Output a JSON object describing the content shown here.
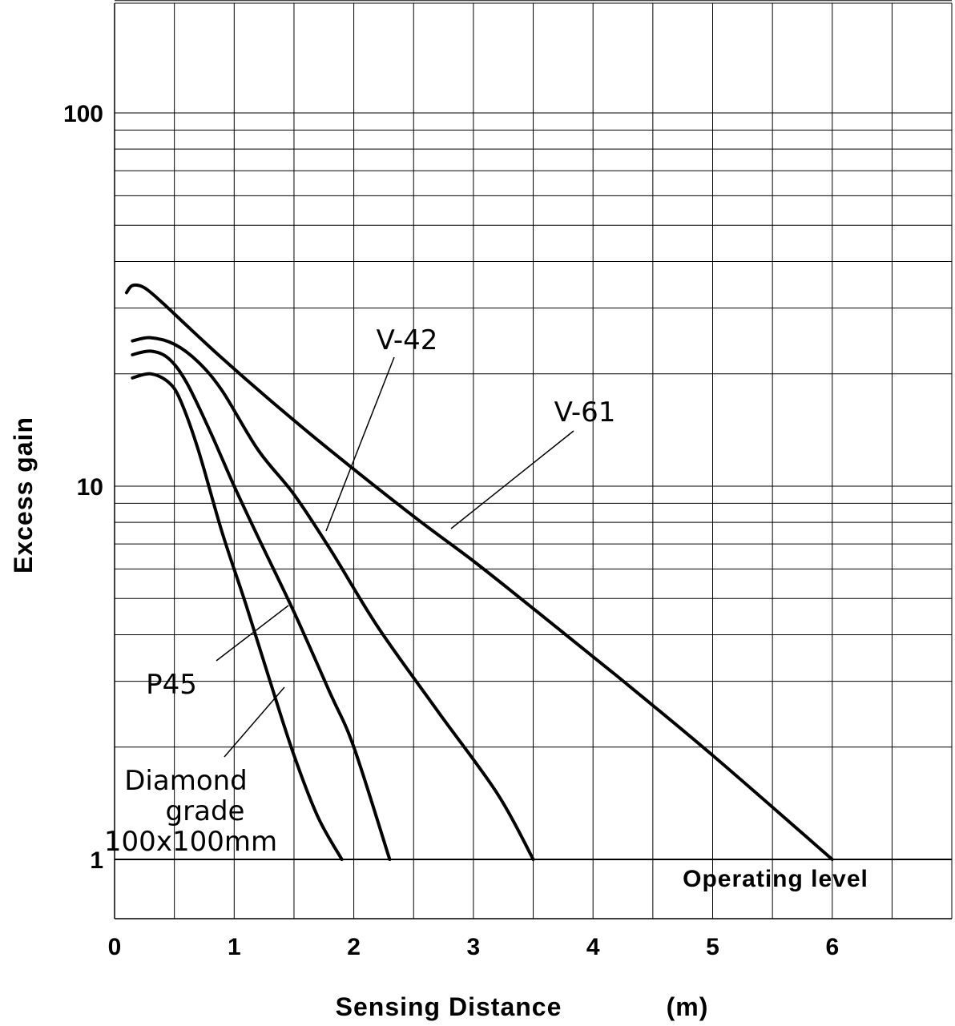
{
  "chart_data": {
    "type": "line",
    "xlabel": "Sensing Distance",
    "xunit": "(m)",
    "ylabel": "Excess gain",
    "yscale": "log",
    "xlim": [
      0,
      7
    ],
    "ylim": [
      0.5,
      200
    ],
    "x_ticks": [
      {
        "value": 0,
        "label": "0"
      },
      {
        "value": 1,
        "label": "1"
      },
      {
        "value": 2,
        "label": "2"
      },
      {
        "value": 3,
        "label": "3"
      },
      {
        "value": 4,
        "label": "4"
      },
      {
        "value": 5,
        "label": "5"
      },
      {
        "value": 6,
        "label": "6"
      }
    ],
    "y_ticks": [
      {
        "value": 1,
        "label": "1"
      },
      {
        "value": 10,
        "label": "10"
      },
      {
        "value": 100,
        "label": "100"
      }
    ],
    "grid": true,
    "series": [
      {
        "name": "V-61",
        "x": [
          0.1,
          0.15,
          0.25,
          0.4,
          0.6,
          0.9,
          1.3,
          1.8,
          2.5,
          3.0,
          3.5,
          4.2,
          5.0,
          6.0
        ],
        "y": [
          33,
          34.5,
          34,
          31,
          27,
          22,
          17,
          12.5,
          8.3,
          6.3,
          4.7,
          3.1,
          1.9,
          1.0
        ]
      },
      {
        "name": "V-42",
        "x": [
          0.15,
          0.3,
          0.5,
          0.7,
          0.9,
          1.2,
          1.5,
          1.8,
          2.2,
          2.7,
          3.2,
          3.5
        ],
        "y": [
          24.5,
          25,
          24,
          21.5,
          18,
          12.5,
          9.5,
          6.8,
          4.2,
          2.5,
          1.5,
          1.0
        ]
      },
      {
        "name": "P45",
        "x": [
          0.15,
          0.3,
          0.45,
          0.6,
          0.8,
          1.0,
          1.2,
          1.5,
          1.8,
          2.0,
          2.3
        ],
        "y": [
          22.5,
          23,
          22,
          19,
          14,
          10,
          7.3,
          4.6,
          2.8,
          2.0,
          1.0
        ]
      },
      {
        "name": "Diamond grade 100x100mm",
        "x": [
          0.15,
          0.3,
          0.45,
          0.55,
          0.7,
          0.9,
          1.1,
          1.3,
          1.5,
          1.7,
          1.9
        ],
        "y": [
          19.5,
          20,
          19,
          17,
          12.5,
          7.5,
          4.8,
          3.0,
          1.9,
          1.3,
          1.0
        ]
      }
    ],
    "reference_line": {
      "value": 1,
      "label": "Operating level"
    },
    "series_labels": [
      {
        "series": "V-42",
        "lines": [
          "V-42"
        ]
      },
      {
        "series": "V-61",
        "lines": [
          "V-61"
        ]
      },
      {
        "series": "P45",
        "lines": [
          "P45"
        ]
      },
      {
        "series": "Diamond grade 100x100mm",
        "lines": [
          "Diamond",
          "grade",
          "100x100mm"
        ]
      }
    ]
  }
}
